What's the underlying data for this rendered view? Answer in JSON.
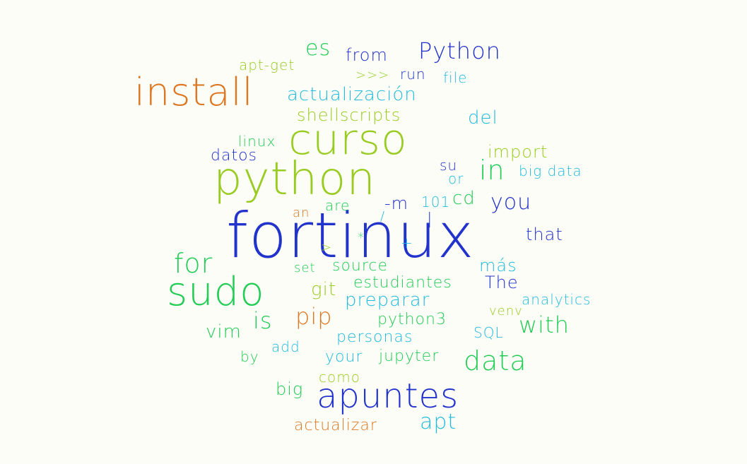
{
  "palette": {
    "background": "#fdfdf8",
    "blue": "#2233cc",
    "green": "#22cc55",
    "lime": "#99cc22",
    "cyan": "#22bbdd",
    "orange": "#dd7722"
  },
  "words": [
    {
      "text": "fortinux",
      "color": "blue"
    },
    {
      "text": "python",
      "color": "lime"
    },
    {
      "text": "curso",
      "color": "lime"
    },
    {
      "text": "sudo",
      "color": "green"
    },
    {
      "text": "install",
      "color": "orange"
    },
    {
      "text": "apuntes",
      "color": "blue"
    },
    {
      "text": "Python",
      "color": "blue"
    },
    {
      "text": "data",
      "color": "green"
    },
    {
      "text": "for",
      "color": "green"
    },
    {
      "text": "in",
      "color": "green"
    },
    {
      "text": "with",
      "color": "green"
    },
    {
      "text": "actualización",
      "color": "cyan"
    },
    {
      "text": "es",
      "color": "green"
    },
    {
      "text": "pip",
      "color": "orange"
    },
    {
      "text": "is",
      "color": "green"
    },
    {
      "text": "apt",
      "color": "cyan"
    },
    {
      "text": "preparar",
      "color": "cyan"
    },
    {
      "text": "from",
      "color": "blue"
    },
    {
      "text": "del",
      "color": "cyan"
    },
    {
      "text": "you",
      "color": "blue"
    },
    {
      "text": "shellscripts",
      "color": "lime"
    },
    {
      "text": "import",
      "color": "lime"
    },
    {
      "text": "vim",
      "color": "green"
    },
    {
      "text": "git",
      "color": "lime"
    },
    {
      "text": "The",
      "color": "blue"
    },
    {
      "text": "that",
      "color": "blue"
    },
    {
      "text": "más",
      "color": "cyan"
    },
    {
      "text": "estudiantes",
      "color": "green"
    },
    {
      "text": "python3",
      "color": "green"
    },
    {
      "text": "personas",
      "color": "cyan"
    },
    {
      "text": "actualizar",
      "color": "orange"
    },
    {
      "text": "source",
      "color": "green"
    },
    {
      "text": "cd",
      "color": "green"
    },
    {
      "text": "jupyter",
      "color": "green"
    },
    {
      "text": "-m",
      "color": "blue"
    },
    {
      "text": "your",
      "color": "cyan"
    },
    {
      "text": "big",
      "color": "green"
    },
    {
      "text": "datos",
      "color": "blue"
    },
    {
      "text": "analytics",
      "color": "cyan"
    },
    {
      "text": "apt-get",
      "color": "lime"
    },
    {
      "text": "big data",
      "color": "cyan"
    },
    {
      "text": "como",
      "color": "lime"
    },
    {
      "text": "are",
      "color": "green"
    },
    {
      "text": "run",
      "color": "blue"
    },
    {
      "text": "linux",
      "color": "green"
    },
    {
      "text": "su",
      "color": "blue"
    },
    {
      "text": "or",
      "color": "cyan"
    },
    {
      "text": "file",
      "color": "cyan"
    },
    {
      "text": "101",
      "color": "cyan"
    },
    {
      "text": "SQL",
      "color": "cyan"
    },
    {
      "text": "add",
      "color": "cyan"
    },
    {
      "text": "by",
      "color": "green"
    },
    {
      "text": "venv",
      "color": "lime"
    },
    {
      "text": "set",
      "color": "green"
    },
    {
      "text": ">>>",
      "color": "lime"
    },
    {
      "text": "an",
      "color": "orange"
    },
    {
      "text": "+",
      "color": "cyan"
    },
    {
      "text": ">",
      "color": "lime"
    },
    {
      "text": "*",
      "color": "green"
    },
    {
      "text": "/",
      "color": "cyan"
    },
    {
      "text": "|",
      "color": "blue"
    }
  ]
}
